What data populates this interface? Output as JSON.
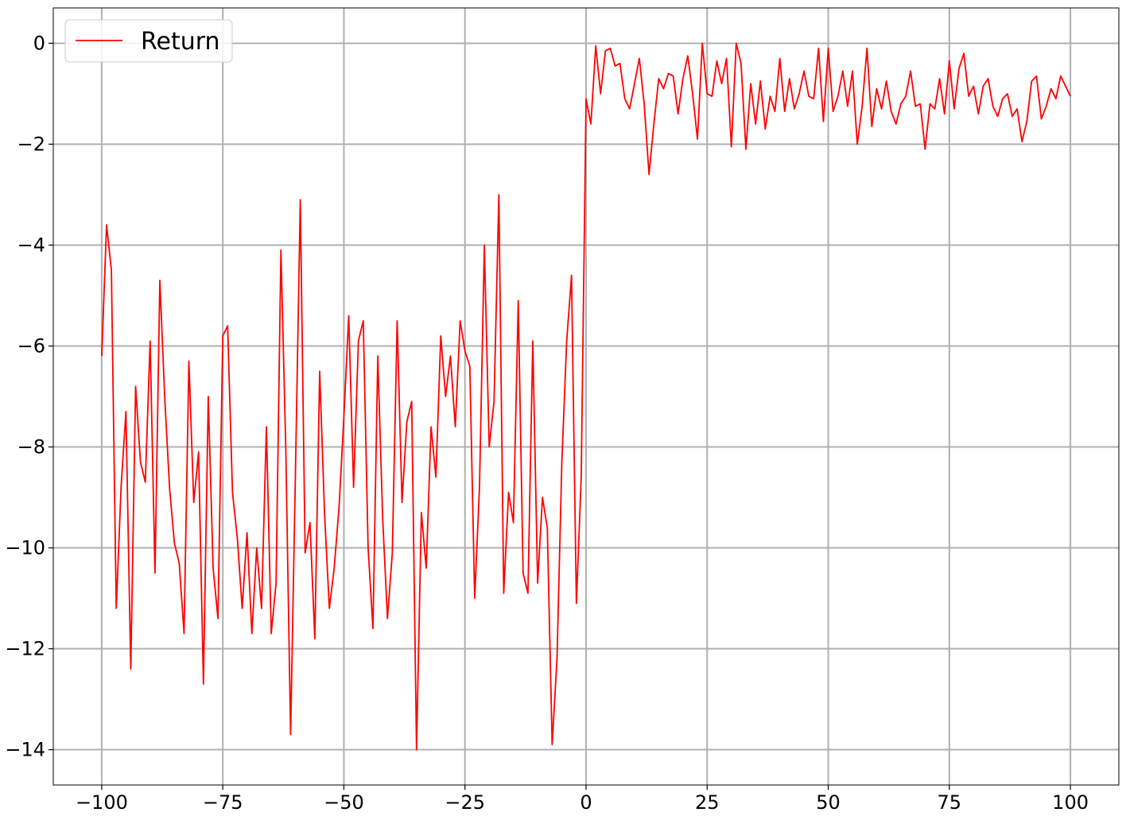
{
  "chart_data": {
    "type": "line",
    "title": "",
    "xlabel": "",
    "ylabel": "",
    "xlim": [
      -110,
      110
    ],
    "ylim": [
      -14.7,
      0.7
    ],
    "x_ticks": [
      -100,
      -75,
      -50,
      -25,
      0,
      25,
      50,
      75,
      100
    ],
    "x_tick_labels": [
      "−100",
      "−75",
      "−50",
      "−25",
      "0",
      "25",
      "50",
      "75",
      "100"
    ],
    "y_ticks": [
      0,
      -2,
      -4,
      -6,
      -8,
      -10,
      -12,
      -14
    ],
    "y_tick_labels": [
      "0",
      "−2",
      "−4",
      "−6",
      "−8",
      "−10",
      "−12",
      "−14"
    ],
    "grid": true,
    "legend_position": "top-left",
    "colors": {
      "series": "#ff0000",
      "grid": "#b0b0b0",
      "axes": "#000000"
    },
    "series": [
      {
        "name": "Return",
        "points": [
          [
            -100,
            -6.2
          ],
          [
            -99,
            -3.6
          ],
          [
            -98,
            -4.5
          ],
          [
            -97,
            -11.2
          ],
          [
            -96,
            -8.8
          ],
          [
            -95,
            -7.3
          ],
          [
            -94,
            -12.4
          ],
          [
            -93,
            -6.8
          ],
          [
            -92,
            -8.3
          ],
          [
            -91,
            -8.7
          ],
          [
            -90,
            -5.9
          ],
          [
            -89,
            -10.5
          ],
          [
            -88,
            -4.7
          ],
          [
            -87,
            -7.0
          ],
          [
            -86,
            -8.8
          ],
          [
            -85,
            -9.9
          ],
          [
            -84,
            -10.3
          ],
          [
            -83,
            -11.7
          ],
          [
            -82,
            -6.3
          ],
          [
            -81,
            -9.1
          ],
          [
            -80,
            -8.1
          ],
          [
            -79,
            -12.7
          ],
          [
            -78,
            -7.0
          ],
          [
            -77,
            -10.4
          ],
          [
            -76,
            -11.4
          ],
          [
            -75,
            -5.8
          ],
          [
            -74,
            -5.6
          ],
          [
            -73,
            -8.9
          ],
          [
            -72,
            -9.8
          ],
          [
            -71,
            -11.2
          ],
          [
            -70,
            -9.7
          ],
          [
            -69,
            -11.7
          ],
          [
            -68,
            -10.0
          ],
          [
            -67,
            -11.2
          ],
          [
            -66,
            -7.6
          ],
          [
            -65,
            -11.7
          ],
          [
            -64,
            -10.7
          ],
          [
            -63,
            -4.1
          ],
          [
            -62,
            -8.0
          ],
          [
            -61,
            -13.7
          ],
          [
            -60,
            -8.5
          ],
          [
            -59,
            -3.1
          ],
          [
            -58,
            -10.1
          ],
          [
            -57,
            -9.5
          ],
          [
            -56,
            -11.8
          ],
          [
            -55,
            -6.5
          ],
          [
            -54,
            -9.3
          ],
          [
            -53,
            -11.2
          ],
          [
            -52,
            -10.4
          ],
          [
            -51,
            -9.2
          ],
          [
            -50,
            -7.4
          ],
          [
            -49,
            -5.4
          ],
          [
            -48,
            -8.8
          ],
          [
            -47,
            -5.9
          ],
          [
            -46,
            -5.5
          ],
          [
            -45,
            -10.0
          ],
          [
            -44,
            -11.6
          ],
          [
            -43,
            -6.2
          ],
          [
            -42,
            -9.4
          ],
          [
            -41,
            -11.4
          ],
          [
            -40,
            -10.1
          ],
          [
            -39,
            -5.5
          ],
          [
            -38,
            -9.1
          ],
          [
            -37,
            -7.5
          ],
          [
            -36,
            -7.1
          ],
          [
            -35,
            -14.0
          ],
          [
            -34,
            -9.3
          ],
          [
            -33,
            -10.4
          ],
          [
            -32,
            -7.6
          ],
          [
            -31,
            -8.6
          ],
          [
            -30,
            -5.8
          ],
          [
            -29,
            -7.0
          ],
          [
            -28,
            -6.2
          ],
          [
            -27,
            -7.6
          ],
          [
            -26,
            -5.5
          ],
          [
            -25,
            -6.1
          ],
          [
            -24,
            -6.4
          ],
          [
            -23,
            -11.0
          ],
          [
            -22,
            -8.8
          ],
          [
            -21,
            -4.0
          ],
          [
            -20,
            -8.0
          ],
          [
            -19,
            -7.1
          ],
          [
            -18,
            -3.0
          ],
          [
            -17,
            -10.9
          ],
          [
            -16,
            -8.9
          ],
          [
            -15,
            -9.5
          ],
          [
            -14,
            -5.1
          ],
          [
            -13,
            -10.5
          ],
          [
            -12,
            -10.9
          ],
          [
            -11,
            -5.9
          ],
          [
            -10,
            -10.7
          ],
          [
            -9,
            -9.0
          ],
          [
            -8,
            -9.6
          ],
          [
            -7,
            -13.9
          ],
          [
            -6,
            -12.2
          ],
          [
            -5,
            -8.3
          ],
          [
            -4,
            -5.9
          ],
          [
            -3,
            -4.6
          ],
          [
            -2,
            -11.1
          ],
          [
            -1,
            -8.6
          ],
          [
            0,
            -1.1
          ],
          [
            1,
            -1.6
          ],
          [
            2,
            -0.05
          ],
          [
            3,
            -1.0
          ],
          [
            4,
            -0.15
          ],
          [
            5,
            -0.1
          ],
          [
            6,
            -0.45
          ],
          [
            7,
            -0.4
          ],
          [
            8,
            -1.1
          ],
          [
            9,
            -1.3
          ],
          [
            10,
            -0.8
          ],
          [
            11,
            -0.3
          ],
          [
            12,
            -1.2
          ],
          [
            13,
            -2.6
          ],
          [
            14,
            -1.6
          ],
          [
            15,
            -0.7
          ],
          [
            16,
            -0.9
          ],
          [
            17,
            -0.6
          ],
          [
            18,
            -0.65
          ],
          [
            19,
            -1.4
          ],
          [
            20,
            -0.7
          ],
          [
            21,
            -0.25
          ],
          [
            22,
            -1.0
          ],
          [
            23,
            -1.9
          ],
          [
            24,
            0.0
          ],
          [
            25,
            -1.0
          ],
          [
            26,
            -1.05
          ],
          [
            27,
            -0.35
          ],
          [
            28,
            -0.8
          ],
          [
            29,
            -0.3
          ],
          [
            30,
            -2.05
          ],
          [
            31,
            0.0
          ],
          [
            32,
            -0.4
          ],
          [
            33,
            -2.1
          ],
          [
            34,
            -0.8
          ],
          [
            35,
            -1.6
          ],
          [
            36,
            -0.75
          ],
          [
            37,
            -1.7
          ],
          [
            38,
            -1.05
          ],
          [
            39,
            -1.35
          ],
          [
            40,
            -0.3
          ],
          [
            41,
            -1.35
          ],
          [
            42,
            -0.7
          ],
          [
            43,
            -1.3
          ],
          [
            44,
            -1.0
          ],
          [
            45,
            -0.55
          ],
          [
            46,
            -1.05
          ],
          [
            47,
            -1.1
          ],
          [
            48,
            -0.1
          ],
          [
            49,
            -1.55
          ],
          [
            50,
            -0.1
          ],
          [
            51,
            -1.35
          ],
          [
            52,
            -1.05
          ],
          [
            53,
            -0.55
          ],
          [
            54,
            -1.25
          ],
          [
            55,
            -0.55
          ],
          [
            56,
            -2.0
          ],
          [
            57,
            -1.25
          ],
          [
            58,
            -0.1
          ],
          [
            59,
            -1.65
          ],
          [
            60,
            -0.9
          ],
          [
            61,
            -1.3
          ],
          [
            62,
            -0.75
          ],
          [
            63,
            -1.35
          ],
          [
            64,
            -1.6
          ],
          [
            65,
            -1.2
          ],
          [
            66,
            -1.05
          ],
          [
            67,
            -0.55
          ],
          [
            68,
            -1.25
          ],
          [
            69,
            -1.2
          ],
          [
            70,
            -2.1
          ],
          [
            71,
            -1.2
          ],
          [
            72,
            -1.3
          ],
          [
            73,
            -0.7
          ],
          [
            74,
            -1.4
          ],
          [
            75,
            -0.35
          ],
          [
            76,
            -1.3
          ],
          [
            77,
            -0.5
          ],
          [
            78,
            -0.2
          ],
          [
            79,
            -1.05
          ],
          [
            80,
            -0.85
          ],
          [
            81,
            -1.4
          ],
          [
            82,
            -0.85
          ],
          [
            83,
            -0.7
          ],
          [
            84,
            -1.25
          ],
          [
            85,
            -1.45
          ],
          [
            86,
            -1.1
          ],
          [
            87,
            -1.0
          ],
          [
            88,
            -1.45
          ],
          [
            89,
            -1.3
          ],
          [
            90,
            -1.95
          ],
          [
            91,
            -1.55
          ],
          [
            92,
            -0.75
          ],
          [
            93,
            -0.65
          ],
          [
            94,
            -1.5
          ],
          [
            95,
            -1.25
          ],
          [
            96,
            -0.9
          ],
          [
            97,
            -1.1
          ],
          [
            98,
            -0.65
          ],
          [
            99,
            -0.85
          ],
          [
            100,
            -1.05
          ]
        ]
      }
    ]
  }
}
